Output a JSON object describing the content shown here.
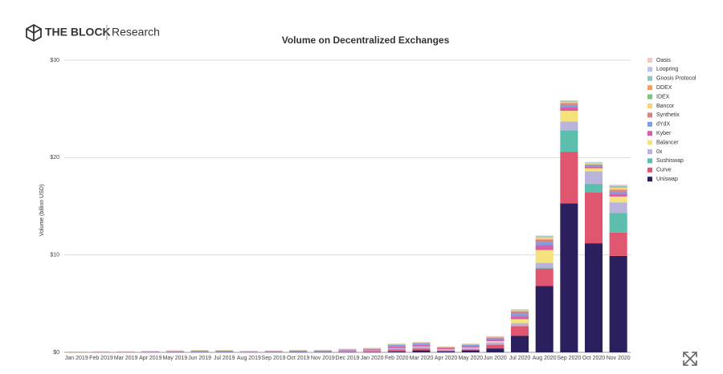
{
  "brand": {
    "name": "THE BLOCK",
    "section": "Research"
  },
  "chart_data": {
    "type": "stacked_bar",
    "title": "Volume on Decentralized Exchanges",
    "y_label": "Volume (billion USD)",
    "categories": [
      "Jan 2019",
      "Feb 2019",
      "Mar 2019",
      "Apr 2019",
      "May 2019",
      "Jun 2019",
      "Jul 2019",
      "Aug 2019",
      "Sep 2019",
      "Oct 2019",
      "Nov 2019",
      "Dec 2019",
      "Jan 2020",
      "Feb 2020",
      "Mar 2020",
      "Apr 2020",
      "May 2020",
      "Jun 2020",
      "Jul 2020",
      "Aug 2020",
      "Sep 2020",
      "Oct 2020",
      "Nov 2020"
    ],
    "ylim": [
      0,
      30
    ],
    "yticks": [
      {
        "value": 0,
        "label": "$0"
      },
      {
        "value": 10,
        "label": "$10"
      },
      {
        "value": 20,
        "label": "$20"
      },
      {
        "value": 30,
        "label": "$30"
      }
    ],
    "grid": true,
    "series": [
      {
        "name": "Uniswap",
        "color": "#2b1f5e",
        "values": [
          0.01,
          0.01,
          0.01,
          0.02,
          0.03,
          0.03,
          0.03,
          0.02,
          0.03,
          0.04,
          0.04,
          0.04,
          0.05,
          0.1,
          0.2,
          0.1,
          0.2,
          0.4,
          1.7,
          6.8,
          15.3,
          11.2,
          9.9
        ]
      },
      {
        "name": "Curve",
        "color": "#e0566e",
        "values": [
          0,
          0,
          0,
          0,
          0,
          0,
          0,
          0,
          0,
          0.01,
          0.01,
          0.02,
          0.05,
          0.2,
          0.2,
          0.1,
          0.1,
          0.4,
          1.0,
          1.8,
          5.3,
          5.2,
          2.4
        ]
      },
      {
        "name": "Sushiswap",
        "color": "#5cbfae",
        "values": [
          0,
          0,
          0,
          0,
          0,
          0,
          0,
          0,
          0,
          0,
          0,
          0,
          0,
          0,
          0,
          0,
          0,
          0,
          0,
          0.1,
          2.2,
          0.9,
          2.0
        ]
      },
      {
        "name": "0x",
        "color": "#b9b4da",
        "values": [
          0.01,
          0.02,
          0.02,
          0.03,
          0.04,
          0.05,
          0.05,
          0.03,
          0.04,
          0.05,
          0.05,
          0.08,
          0.08,
          0.15,
          0.2,
          0.1,
          0.15,
          0.25,
          0.3,
          0.5,
          0.9,
          1.3,
          1.1
        ]
      },
      {
        "name": "Balancer",
        "color": "#f6e27c",
        "values": [
          0,
          0,
          0,
          0,
          0,
          0,
          0,
          0,
          0,
          0,
          0,
          0,
          0,
          0,
          0.01,
          0.02,
          0.05,
          0.1,
          0.4,
          1.3,
          1.1,
          0.3,
          0.6
        ]
      },
      {
        "name": "Kyber",
        "color": "#d45fa2",
        "values": [
          0.01,
          0.02,
          0.02,
          0.03,
          0.04,
          0.05,
          0.05,
          0.03,
          0.04,
          0.05,
          0.05,
          0.08,
          0.1,
          0.15,
          0.15,
          0.1,
          0.15,
          0.2,
          0.3,
          0.5,
          0.4,
          0.2,
          0.3
        ]
      },
      {
        "name": "dYdX",
        "color": "#7b9fe0",
        "values": [
          0,
          0,
          0.01,
          0.01,
          0.02,
          0.02,
          0.03,
          0.02,
          0.03,
          0.04,
          0.04,
          0.06,
          0.08,
          0.15,
          0.15,
          0.08,
          0.1,
          0.15,
          0.3,
          0.3,
          0.2,
          0.1,
          0.2
        ]
      },
      {
        "name": "Synthetix",
        "color": "#d98080",
        "values": [
          0,
          0,
          0,
          0,
          0,
          0,
          0,
          0,
          0,
          0,
          0.01,
          0.02,
          0.03,
          0.05,
          0.05,
          0.03,
          0.05,
          0.05,
          0.2,
          0.3,
          0.2,
          0.1,
          0.2
        ]
      },
      {
        "name": "Bancor",
        "color": "#f7d37a",
        "values": [
          0.01,
          0.02,
          0.02,
          0.03,
          0.03,
          0.03,
          0.03,
          0.02,
          0.02,
          0.03,
          0.02,
          0.03,
          0.03,
          0.05,
          0.05,
          0.03,
          0.05,
          0.05,
          0.1,
          0.2,
          0.1,
          0.1,
          0.2
        ]
      },
      {
        "name": "IDEX",
        "color": "#7bc47f",
        "values": [
          0.01,
          0.01,
          0.01,
          0.01,
          0.01,
          0.02,
          0.02,
          0.01,
          0.01,
          0.01,
          0.01,
          0.01,
          0.01,
          0.01,
          0.01,
          0.01,
          0.01,
          0.02,
          0.05,
          0.05,
          0.05,
          0.02,
          0.05
        ]
      },
      {
        "name": "DDEX",
        "color": "#f0a060",
        "values": [
          0.01,
          0.01,
          0.01,
          0.01,
          0.01,
          0.01,
          0.01,
          0.01,
          0.01,
          0.01,
          0.01,
          0.01,
          0.01,
          0.01,
          0.01,
          0.01,
          0.01,
          0.01,
          0.02,
          0.02,
          0.02,
          0.01,
          0.02
        ]
      },
      {
        "name": "Gnosis Protocol",
        "color": "#93c4c4",
        "values": [
          0,
          0,
          0,
          0,
          0,
          0,
          0,
          0,
          0,
          0,
          0,
          0,
          0,
          0,
          0,
          0,
          0,
          0,
          0,
          0.05,
          0.05,
          0.05,
          0.1
        ]
      },
      {
        "name": "Loopring",
        "color": "#b3c6e7",
        "values": [
          0,
          0,
          0,
          0,
          0,
          0,
          0,
          0,
          0,
          0,
          0,
          0.01,
          0.01,
          0.01,
          0.01,
          0.01,
          0.01,
          0.01,
          0.03,
          0.05,
          0.05,
          0.05,
          0.1
        ]
      },
      {
        "name": "Oasis",
        "color": "#f4c7c3",
        "values": [
          0.01,
          0.02,
          0.02,
          0.02,
          0.03,
          0.03,
          0.03,
          0.02,
          0.02,
          0.02,
          0.02,
          0.02,
          0.02,
          0.03,
          0.03,
          0.02,
          0.02,
          0.03,
          0.03,
          0.03,
          0.02,
          0.02,
          0.05
        ]
      }
    ]
  }
}
